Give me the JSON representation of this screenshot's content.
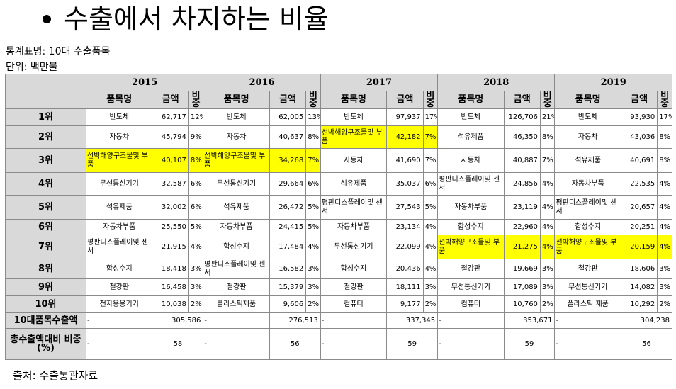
{
  "title": "수출에서 차지하는 비율",
  "stat_name": "통계표명: 10대 수출품목",
  "unit": "단위: 백만불",
  "source": "출처: 수출통관자료",
  "highlight_color": "#ffff00",
  "table": {
    "years": [
      "2015",
      "2016",
      "2017",
      "2018",
      "2019"
    ],
    "sub_headers": {
      "item": "품목명",
      "amount": "금액",
      "share": "비중"
    },
    "rows": [
      {
        "rank": "1위",
        "cells": [
          {
            "item": "반도체",
            "amount": "62,717",
            "share": "12%"
          },
          {
            "item": "반도체",
            "amount": "62,005",
            "share": "13%"
          },
          {
            "item": "반도체",
            "amount": "97,937",
            "share": "17%"
          },
          {
            "item": "반도체",
            "amount": "126,706",
            "share": "21%"
          },
          {
            "item": "반도체",
            "amount": "93,930",
            "share": "17%"
          }
        ]
      },
      {
        "rank": "2위",
        "cells": [
          {
            "item": "자동차",
            "amount": "45,794",
            "share": "9%"
          },
          {
            "item": "자동차",
            "amount": "40,637",
            "share": "8%"
          },
          {
            "item": "선박해양구조물및 부품",
            "amount": "42,182",
            "share": "7%",
            "highlight": true
          },
          {
            "item": "석유제품",
            "amount": "46,350",
            "share": "8%"
          },
          {
            "item": "자동차",
            "amount": "43,036",
            "share": "8%"
          }
        ]
      },
      {
        "rank": "3위",
        "cells": [
          {
            "item": "선박해양구조물및 부품",
            "amount": "40,107",
            "share": "8%",
            "highlight": true
          },
          {
            "item": "선박해양구조물및 부품",
            "amount": "34,268",
            "share": "7%",
            "highlight": true
          },
          {
            "item": "자동차",
            "amount": "41,690",
            "share": "7%"
          },
          {
            "item": "자동차",
            "amount": "40,887",
            "share": "7%"
          },
          {
            "item": "석유제품",
            "amount": "40,691",
            "share": "8%"
          }
        ]
      },
      {
        "rank": "4위",
        "cells": [
          {
            "item": "무선통신기기",
            "amount": "32,587",
            "share": "6%"
          },
          {
            "item": "무선통신기기",
            "amount": "29,664",
            "share": "6%"
          },
          {
            "item": "석유제품",
            "amount": "35,037",
            "share": "6%"
          },
          {
            "item": "평판디스플레이및 센서",
            "amount": "24,856",
            "share": "4%"
          },
          {
            "item": "자동차부품",
            "amount": "22,535",
            "share": "4%"
          }
        ]
      },
      {
        "rank": "5위",
        "cells": [
          {
            "item": "석유제품",
            "amount": "32,002",
            "share": "6%"
          },
          {
            "item": "석유제품",
            "amount": "26,472",
            "share": "5%"
          },
          {
            "item": "평판디스플레이및 센서",
            "amount": "27,543",
            "share": "5%"
          },
          {
            "item": "자동차부품",
            "amount": "23,119",
            "share": "4%"
          },
          {
            "item": "평판디스플레이및 센서",
            "amount": "20,657",
            "share": "4%"
          }
        ]
      },
      {
        "rank": "6위",
        "cells": [
          {
            "item": "자동차부품",
            "amount": "25,550",
            "share": "5%"
          },
          {
            "item": "자동차부품",
            "amount": "24,415",
            "share": "5%"
          },
          {
            "item": "자동차부품",
            "amount": "23,134",
            "share": "4%"
          },
          {
            "item": "합성수지",
            "amount": "22,960",
            "share": "4%"
          },
          {
            "item": "합성수지",
            "amount": "20,251",
            "share": "4%"
          }
        ]
      },
      {
        "rank": "7위",
        "cells": [
          {
            "item": "평판디스플레이및 센서",
            "amount": "21,915",
            "share": "4%"
          },
          {
            "item": "합성수지",
            "amount": "17,484",
            "share": "4%"
          },
          {
            "item": "무선통신기기",
            "amount": "22,099",
            "share": "4%"
          },
          {
            "item": "선박해양구조물및 부품",
            "amount": "21,275",
            "share": "4%",
            "highlight": true
          },
          {
            "item": "선박해양구조물및 부품",
            "amount": "20,159",
            "share": "4%",
            "highlight": true
          }
        ]
      },
      {
        "rank": "8위",
        "cells": [
          {
            "item": "합성수지",
            "amount": "18,418",
            "share": "3%"
          },
          {
            "item": "평판디스플레이및 센서",
            "amount": "16,582",
            "share": "3%"
          },
          {
            "item": "합성수지",
            "amount": "20,436",
            "share": "4%"
          },
          {
            "item": "철강판",
            "amount": "19,669",
            "share": "3%"
          },
          {
            "item": "철강판",
            "amount": "18,606",
            "share": "3%"
          }
        ]
      },
      {
        "rank": "9위",
        "cells": [
          {
            "item": "철강판",
            "amount": "16,458",
            "share": "3%"
          },
          {
            "item": "철강판",
            "amount": "15,379",
            "share": "3%"
          },
          {
            "item": "철강판",
            "amount": "18,111",
            "share": "3%"
          },
          {
            "item": "무선통신기기",
            "amount": "17,089",
            "share": "3%"
          },
          {
            "item": "무선통신기기",
            "amount": "14,082",
            "share": "3%"
          }
        ]
      },
      {
        "rank": "10위",
        "cells": [
          {
            "item": "전자응용기기",
            "amount": "10,038",
            "share": "2%"
          },
          {
            "item": "플라스틱제품",
            "amount": "9,606",
            "share": "2%"
          },
          {
            "item": "컴퓨터",
            "amount": "9,177",
            "share": "2%"
          },
          {
            "item": "컴퓨터",
            "amount": "10,760",
            "share": "2%"
          },
          {
            "item": "플라스틱 제품",
            "amount": "10,292",
            "share": "2%"
          }
        ]
      }
    ],
    "totals": [
      {
        "label": "10대품목수출액",
        "dash": "-",
        "values": [
          "305,586",
          "276,513",
          "337,345",
          "353,671",
          "304,238"
        ]
      },
      {
        "label": "총수출액대비 비중(%)",
        "dash": "-",
        "values": [
          "58",
          "56",
          "59",
          "59",
          "56"
        ]
      }
    ]
  }
}
